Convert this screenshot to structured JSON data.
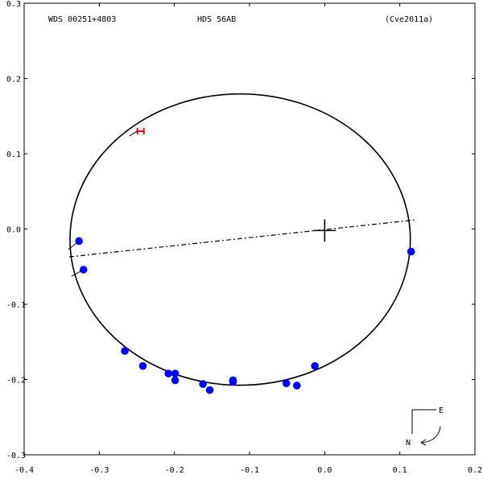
{
  "header": {
    "left": "WDS 00251+4803",
    "center": "HDS  56AB",
    "right": "(Cve2011a)"
  },
  "chart_data": {
    "type": "scatter",
    "x_ticks": [
      "-0.4",
      "-0.3",
      "-0.2",
      "-0.1",
      "0.0",
      "0.1",
      "0.2"
    ],
    "y_ticks": [
      "0.3",
      "0.2",
      "0.1",
      "0.0",
      "-0.1",
      "-0.2",
      "-0.3"
    ],
    "xlim": [
      -0.4,
      0.2
    ],
    "ylim": [
      -0.3,
      0.3
    ],
    "grid": false,
    "orbit_ellipse": {
      "center": [
        -0.1125,
        -0.014
      ],
      "semi_axis_x": 0.2265,
      "semi_axis_y": 0.1935
    },
    "line_of_nodes": [
      [
        -0.34,
        -0.037
      ],
      [
        0.12,
        0.012
      ]
    ],
    "primary_star": [
      0.0,
      -0.002
    ],
    "observations": [
      [
        -0.327,
        -0.016
      ],
      [
        -0.321,
        -0.054
      ],
      [
        -0.266,
        -0.162
      ],
      [
        -0.242,
        -0.182
      ],
      [
        -0.208,
        -0.192
      ],
      [
        -0.199,
        -0.192
      ],
      [
        -0.199,
        -0.201
      ],
      [
        -0.162,
        -0.206
      ],
      [
        -0.153,
        -0.214
      ],
      [
        -0.122,
        -0.201
      ],
      [
        -0.122,
        -0.203
      ],
      [
        -0.051,
        -0.205
      ],
      [
        -0.037,
        -0.208
      ],
      [
        -0.013,
        -0.182
      ],
      [
        0.115,
        -0.03
      ]
    ],
    "residual_lines": [
      [
        [
          -0.327,
          -0.016
        ],
        [
          -0.341,
          -0.027
        ]
      ],
      [
        [
          -0.321,
          -0.054
        ],
        [
          -0.337,
          -0.063
        ]
      ]
    ],
    "highlight_point": {
      "x": -0.245,
      "y": 0.13,
      "color": "#ee0000"
    },
    "point_color": "#0000ff",
    "compass": {
      "east_label": "E",
      "north_label": "N"
    }
  }
}
